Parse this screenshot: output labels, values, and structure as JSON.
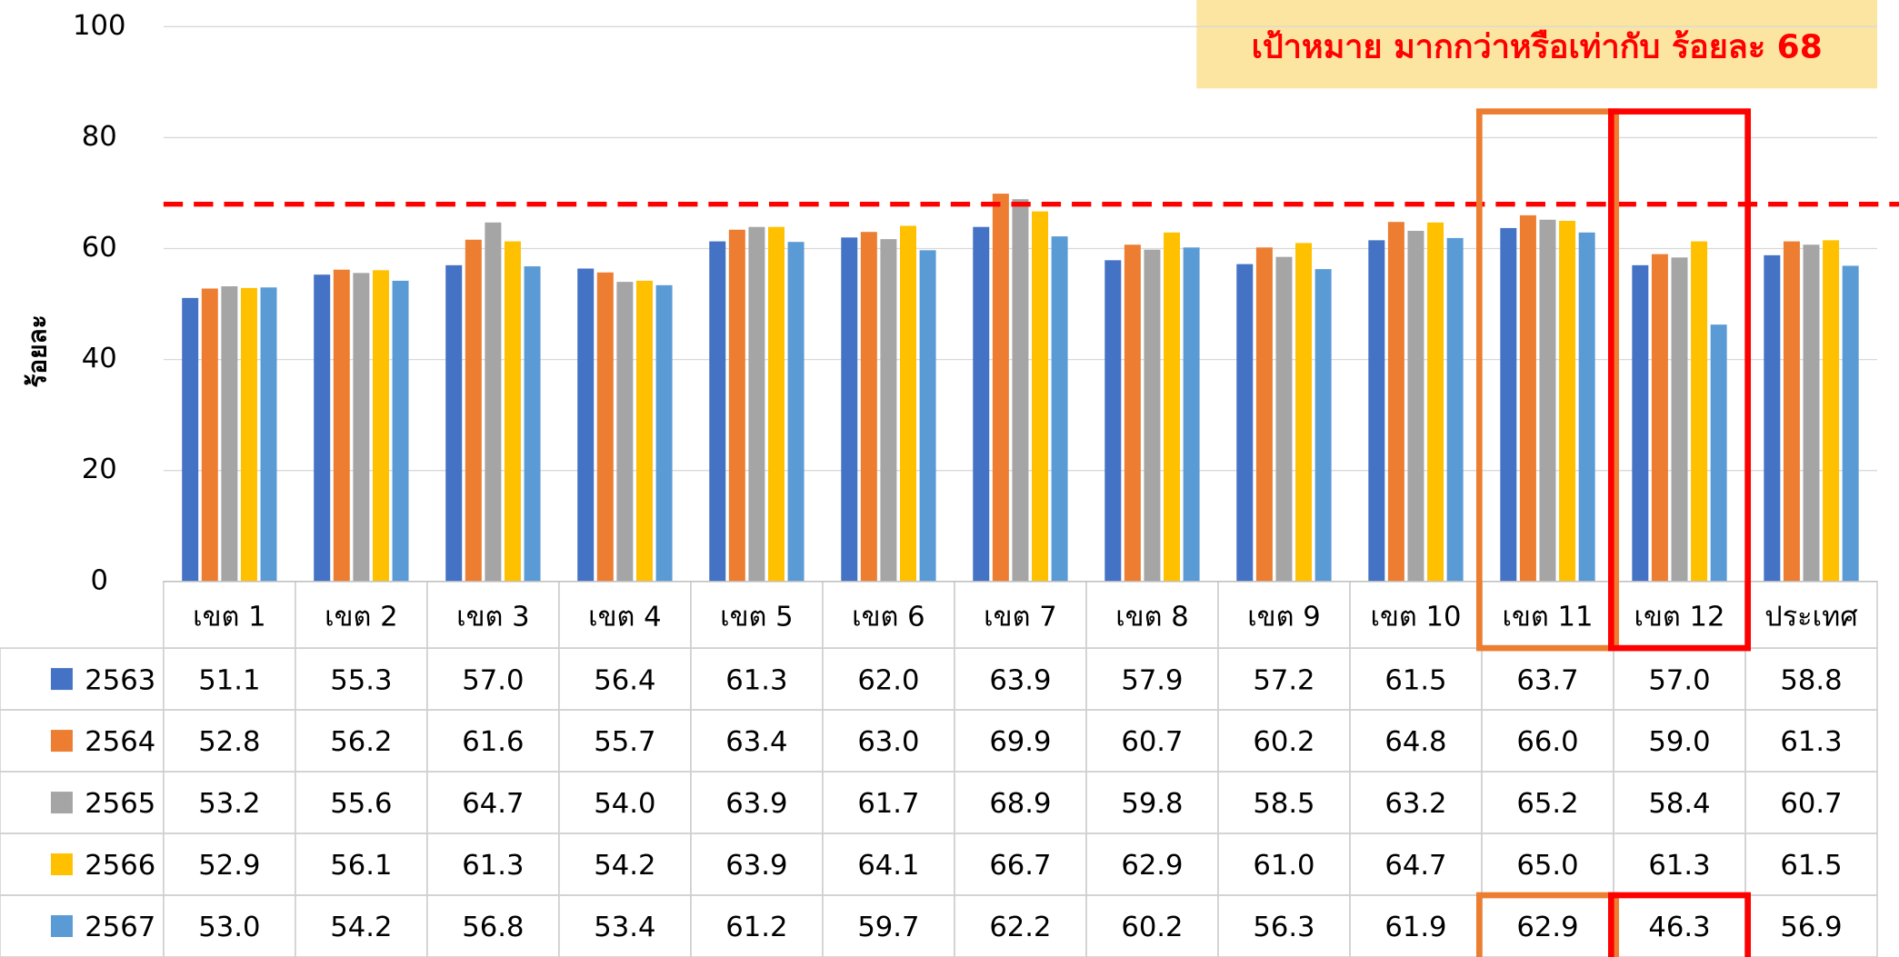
{
  "chart_data": {
    "type": "bar",
    "y_label": "ร้อยละ",
    "annotation": "เป้าหมาย มากกว่าหรือเท่ากับ ร้อยละ 68",
    "target": 68,
    "target_color": "#ff0000",
    "categories": [
      "เขต 1",
      "เขต 2",
      "เขต 3",
      "เขต 4",
      "เขต 5",
      "เขต 6",
      "เขต 7",
      "เขต 8",
      "เขต 9",
      "เขต 10",
      "เขต 11",
      "เขต 12",
      "ประเทศ"
    ],
    "series": [
      {
        "name": "2563",
        "color": "#4472c4",
        "values": [
          51.1,
          55.3,
          57.0,
          56.4,
          61.3,
          62.0,
          63.9,
          57.9,
          57.2,
          61.5,
          63.7,
          57.0,
          58.8
        ],
        "value_labels": [
          "51.1",
          "55.3",
          "57.0",
          "56.4",
          "61.3",
          "62.0",
          "63.9",
          "57.9",
          "57.2",
          "61.5",
          "63.7",
          "57.0",
          "58.8"
        ]
      },
      {
        "name": "2564",
        "color": "#ed7d31",
        "values": [
          52.8,
          56.2,
          61.6,
          55.7,
          63.4,
          63.0,
          69.9,
          60.7,
          60.2,
          64.8,
          66.0,
          59.0,
          61.3
        ],
        "value_labels": [
          "52.8",
          "56.2",
          "61.6",
          "55.7",
          "63.4",
          "63.0",
          "69.9",
          "60.7",
          "60.2",
          "64.8",
          "66.0",
          "59.0",
          "61.3"
        ]
      },
      {
        "name": "2565",
        "color": "#a5a5a5",
        "values": [
          53.2,
          55.6,
          64.7,
          54.0,
          63.9,
          61.7,
          68.9,
          59.8,
          58.5,
          63.2,
          65.2,
          58.4,
          60.7
        ],
        "value_labels": [
          "53.2",
          "55.6",
          "64.7",
          "54.0",
          "63.9",
          "61.7",
          "68.9",
          "59.8",
          "58.5",
          "63.2",
          "65.2",
          "58.4",
          "60.7"
        ]
      },
      {
        "name": "2566",
        "color": "#ffc000",
        "values": [
          52.9,
          56.1,
          61.3,
          54.2,
          63.9,
          64.1,
          66.7,
          62.9,
          61.0,
          64.7,
          65.0,
          61.3,
          61.5
        ],
        "value_labels": [
          "52.9",
          "56.1",
          "61.3",
          "54.2",
          "63.9",
          "64.1",
          "66.7",
          "62.9",
          "61.0",
          "64.7",
          "65.0",
          "61.3",
          "61.5"
        ]
      },
      {
        "name": "2567",
        "color": "#5b9bd5",
        "values": [
          53.0,
          54.2,
          56.8,
          53.4,
          61.2,
          59.7,
          62.2,
          60.2,
          56.3,
          61.9,
          62.9,
          46.3,
          56.9
        ],
        "value_labels": [
          "53.0",
          "54.2",
          "56.8",
          "53.4",
          "61.2",
          "59.7",
          "62.2",
          "60.2",
          "56.3",
          "61.9",
          "62.9",
          "46.3",
          "56.9"
        ]
      }
    ],
    "ylim": [
      0,
      100
    ],
    "yticks": [
      0,
      20,
      40,
      60,
      80,
      100
    ],
    "grid": true
  }
}
